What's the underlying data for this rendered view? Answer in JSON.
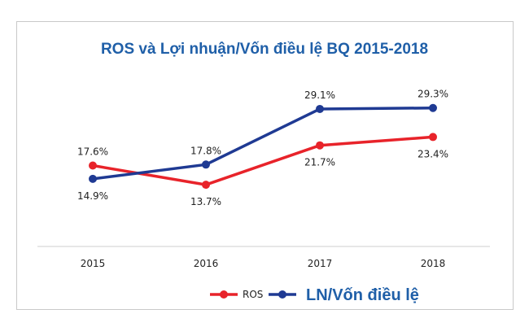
{
  "chart_data": {
    "type": "line",
    "title": "ROS và Lợi nhuận/Vốn điều lệ BQ 2015-2018",
    "categories": [
      "2015",
      "2016",
      "2017",
      "2018"
    ],
    "series": [
      {
        "name": "ROS",
        "color": "#e8232a",
        "values": [
          17.6,
          13.7,
          21.7,
          23.4
        ],
        "labels": [
          "17.6%",
          "13.7%",
          "21.7%",
          "23.4%"
        ],
        "label_pos": [
          "above",
          "below",
          "below",
          "below"
        ]
      },
      {
        "name": "LN/Vốn điều lệ",
        "color": "#1f3a93",
        "values": [
          14.9,
          17.8,
          29.1,
          29.3
        ],
        "labels": [
          "14.9%",
          "17.8%",
          "29.1%",
          "29.3%"
        ],
        "label_pos": [
          "below",
          "above",
          "above",
          "above"
        ]
      }
    ],
    "ylim": [
      0,
      36
    ],
    "xlabel": "",
    "ylabel": "",
    "grid": false,
    "legend": "bottom"
  }
}
